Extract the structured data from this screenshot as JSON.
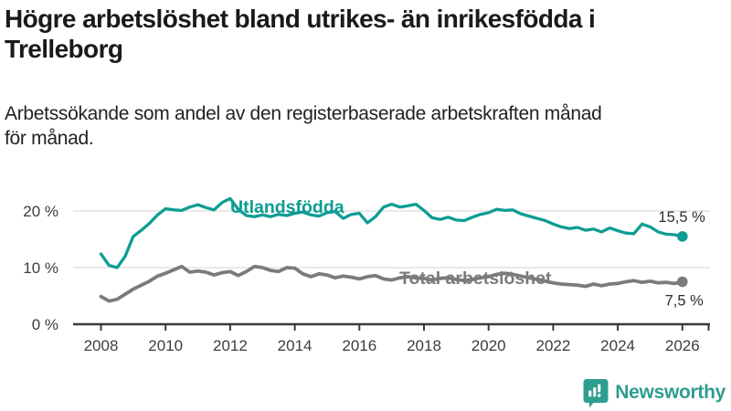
{
  "header": {
    "title_lines": [
      "Högre arbetslöshet bland utrikes- än inrikesfödda i",
      "Trelleborg"
    ],
    "subtitle_lines": [
      "Arbetssökande som andel av den registerbaserade arbetskraften månad",
      "för månad."
    ]
  },
  "chart_data": {
    "type": "line",
    "unit": "%",
    "grid": "horizontal-only",
    "legend_position": "inline-labels",
    "x_range": [
      2008,
      2026.9
    ],
    "y_range": [
      0,
      23.5
    ],
    "y_ticks": [
      {
        "value": 0,
        "label": "0 %"
      },
      {
        "value": 10,
        "label": "10 %"
      },
      {
        "value": 20,
        "label": "20 %"
      }
    ],
    "x_tick_years": [
      "2008",
      "2010",
      "2012",
      "2014",
      "2016",
      "2018",
      "2020",
      "2022",
      "2024",
      "2026"
    ],
    "x": [
      2008.0,
      2008.25,
      2008.5,
      2008.75,
      2009.0,
      2009.25,
      2009.5,
      2009.75,
      2010.0,
      2010.25,
      2010.5,
      2010.75,
      2011.0,
      2011.25,
      2011.5,
      2011.75,
      2012.0,
      2012.25,
      2012.5,
      2012.75,
      2013.0,
      2013.25,
      2013.5,
      2013.75,
      2014.0,
      2014.25,
      2014.5,
      2014.75,
      2015.0,
      2015.25,
      2015.5,
      2015.75,
      2016.0,
      2016.25,
      2016.5,
      2016.75,
      2017.0,
      2017.25,
      2017.5,
      2017.75,
      2018.0,
      2018.25,
      2018.5,
      2018.75,
      2019.0,
      2019.25,
      2019.5,
      2019.75,
      2020.0,
      2020.25,
      2020.5,
      2020.75,
      2021.0,
      2021.25,
      2021.5,
      2021.75,
      2022.0,
      2022.25,
      2022.5,
      2022.75,
      2023.0,
      2023.25,
      2023.5,
      2023.75,
      2024.0,
      2024.25,
      2024.5,
      2024.75,
      2025.0,
      2025.25,
      2025.5,
      2025.75,
      2026.0
    ],
    "series": [
      {
        "name": "Utlandsfödda",
        "color": "#0d9d93",
        "end_label": "15,5 %",
        "end_value": 15.5,
        "values": [
          12.4,
          10.4,
          10.0,
          12.0,
          15.5,
          16.6,
          17.8,
          19.3,
          20.4,
          20.2,
          20.1,
          20.7,
          21.1,
          20.6,
          20.2,
          21.5,
          22.2,
          20.3,
          19.2,
          19.0,
          19.3,
          19.0,
          19.4,
          19.2,
          19.6,
          19.8,
          19.3,
          19.1,
          19.7,
          19.9,
          18.7,
          19.4,
          19.6,
          17.9,
          19.0,
          20.7,
          21.2,
          20.7,
          20.9,
          21.2,
          20.1,
          18.8,
          18.5,
          18.9,
          18.4,
          18.3,
          18.9,
          19.4,
          19.7,
          20.3,
          20.1,
          20.2,
          19.5,
          19.1,
          18.7,
          18.3,
          17.7,
          17.2,
          16.9,
          17.1,
          16.6,
          16.8,
          16.3,
          17.0,
          16.5,
          16.1,
          16.0,
          17.7,
          17.2,
          16.3,
          15.9,
          15.8,
          15.5
        ]
      },
      {
        "name": "Total arbetslöshet",
        "color": "#7b7b7b",
        "end_label": "7,5 %",
        "end_value": 7.5,
        "values": [
          4.9,
          4.1,
          4.4,
          5.3,
          6.2,
          6.9,
          7.6,
          8.5,
          9.0,
          9.6,
          10.2,
          9.2,
          9.4,
          9.2,
          8.7,
          9.1,
          9.3,
          8.6,
          9.3,
          10.2,
          10.0,
          9.5,
          9.3,
          10.0,
          9.9,
          8.9,
          8.4,
          8.9,
          8.7,
          8.2,
          8.5,
          8.3,
          8.0,
          8.4,
          8.6,
          8.0,
          7.8,
          8.2,
          8.4,
          8.2,
          8.1,
          7.8,
          8.1,
          8.2,
          7.9,
          7.7,
          7.9,
          8.2,
          8.4,
          8.8,
          9.0,
          8.8,
          8.5,
          8.2,
          7.9,
          7.6,
          7.3,
          7.1,
          7.0,
          6.9,
          6.7,
          7.1,
          6.8,
          7.1,
          7.2,
          7.5,
          7.7,
          7.4,
          7.6,
          7.3,
          7.4,
          7.2,
          7.5
        ]
      }
    ],
    "colors": {
      "gridline": "#dcdcdc",
      "axis": "#3a3a3a",
      "tick_label": "#3d3d3d",
      "end_label": "#2d2d2d"
    }
  },
  "footer": {
    "brand": "Newsworthy",
    "brand_color": "#2e9d8f"
  }
}
